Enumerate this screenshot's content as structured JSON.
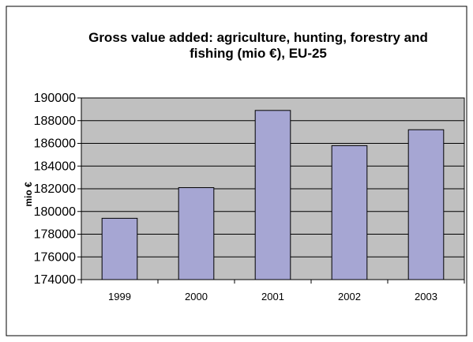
{
  "chart_data": {
    "type": "bar",
    "title_lines": [
      "Gross value added: agriculture, hunting, forestry and",
      "fishing (mio €), EU-25"
    ],
    "ylabel": "mio €",
    "xlabel": "",
    "categories": [
      "1999",
      "2000",
      "2001",
      "2002",
      "2003"
    ],
    "values": [
      179400,
      182100,
      188900,
      185800,
      187200
    ],
    "ylim": [
      174000,
      190000
    ],
    "yticks": [
      "174000",
      "176000",
      "178000",
      "180000",
      "182000",
      "184000",
      "186000",
      "188000",
      "190000"
    ],
    "ytick_values": [
      174000,
      176000,
      178000,
      180000,
      182000,
      184000,
      186000,
      188000,
      190000
    ],
    "grid": true,
    "legend": "none",
    "colors": {
      "plot_background": "#c0c0c0",
      "bar_fill": "#a6a6d3",
      "bar_stroke": "#000000",
      "grid": "#000000",
      "frame": "#000000"
    }
  }
}
